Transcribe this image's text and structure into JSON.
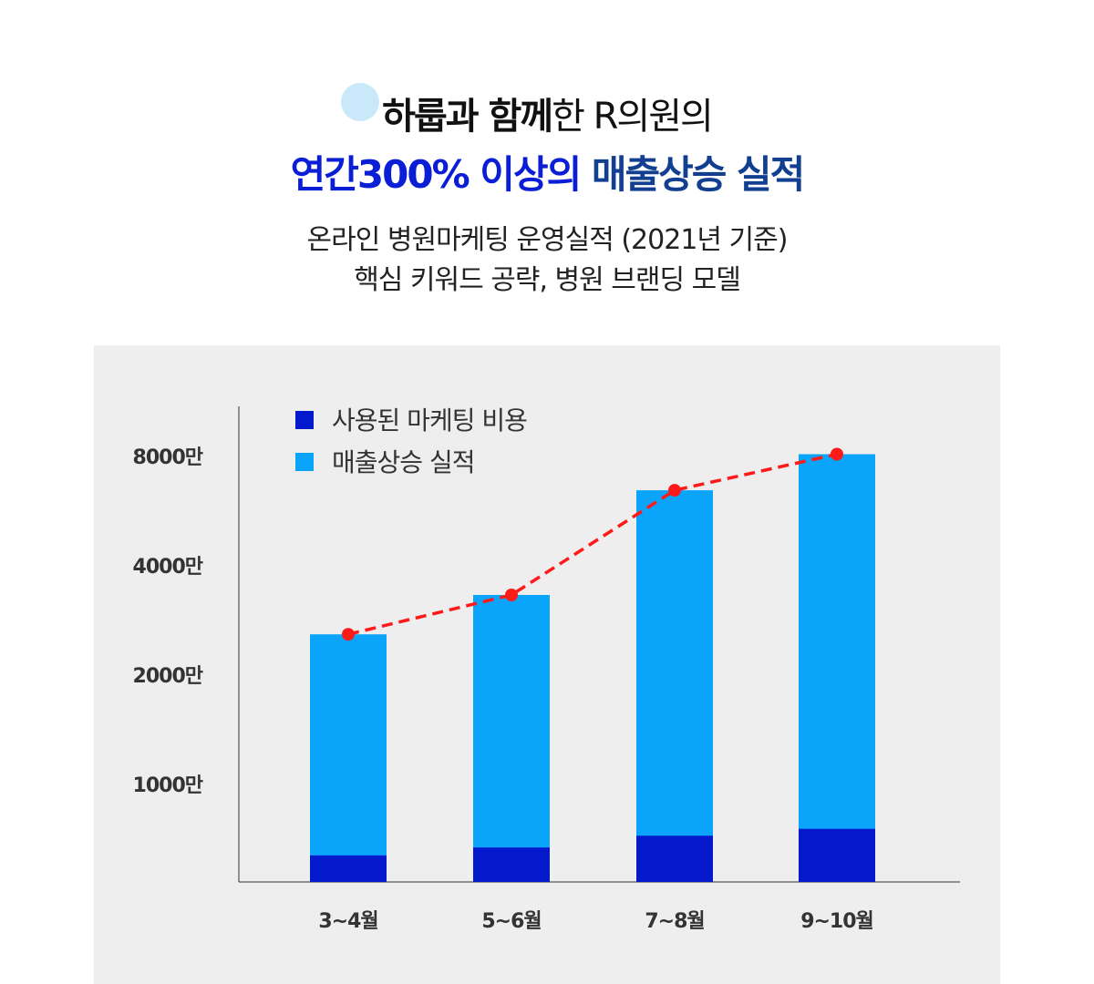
{
  "header": {
    "title_bold_1": "하룹과 함께",
    "title_normal": "한 R의원의",
    "title2_part1": "연간300% 이상의",
    "title2_part2": "매출상승 실적",
    "title2_color1": "#0a1ed6",
    "title2_color2": "#123f8f",
    "subtitle_1": "온라인 병원마케팅 운영실적 (2021년 기준)",
    "subtitle_2": "핵심 키워드 공략, 병원 브랜딩 모델"
  },
  "chart_data": {
    "type": "bar",
    "stacked": true,
    "categories": [
      "3~4월",
      "5~6월",
      "7~8월",
      "9~10월"
    ],
    "y_ticks": [
      1000,
      2000,
      4000,
      8000
    ],
    "y_tick_labels": [
      "1000만",
      "2000만",
      "4000만",
      "8000만"
    ],
    "y_scale": "non-linear (ticks doubled at equal spacing)",
    "series": [
      {
        "name": "사용된 마케팅 비용",
        "color": "#0419cc",
        "values": [
          270,
          350,
          470,
          540
        ]
      },
      {
        "name": "매출상승 실적",
        "color": "#0aa5fb",
        "values": [
          2730,
          3450,
          6730,
          8050
        ],
        "note_total": true
      }
    ],
    "trend_line": {
      "color": "#ff1a1a",
      "style": "dashed",
      "values": [
        2730,
        3450,
        6730,
        8050
      ]
    },
    "legend_position": "top-left",
    "grid": false
  }
}
